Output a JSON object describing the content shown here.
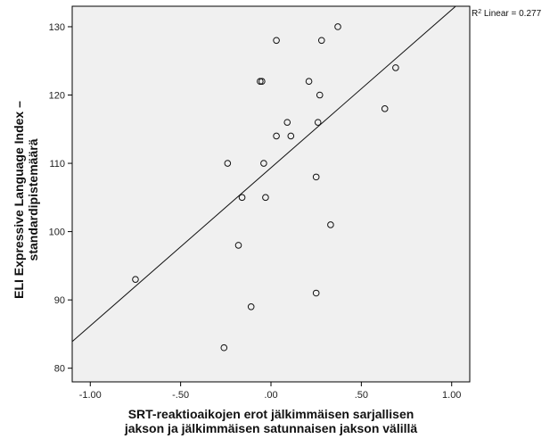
{
  "chart_data": {
    "type": "scatter",
    "xlabel_lines": [
      "SRT-reaktioaikojen erot jälkimmäisen sarjallisen",
      "jakson ja jälkimmäisen satunnaisen jakson välillä"
    ],
    "ylabel_lines": [
      "ELI Expressive Language Index –",
      "standardipistemäärä"
    ],
    "xlim": [
      -1.1,
      1.1
    ],
    "ylim": [
      78,
      133
    ],
    "x_ticks": [
      -1.0,
      -0.5,
      0.0,
      0.5,
      1.0
    ],
    "x_tick_labels": [
      "-1.00",
      "-.50",
      ".00",
      ".50",
      "1.00"
    ],
    "y_ticks": [
      80,
      90,
      100,
      110,
      120,
      130
    ],
    "y_tick_labels": [
      "80",
      "90",
      "100",
      "110",
      "120",
      "130"
    ],
    "grid": false,
    "points": [
      {
        "x": 0.37,
        "y": 130
      },
      {
        "x": 0.03,
        "y": 128
      },
      {
        "x": 0.28,
        "y": 128
      },
      {
        "x": 0.69,
        "y": 124
      },
      {
        "x": -0.06,
        "y": 122
      },
      {
        "x": -0.05,
        "y": 122
      },
      {
        "x": 0.21,
        "y": 122
      },
      {
        "x": 0.27,
        "y": 120
      },
      {
        "x": 0.63,
        "y": 118
      },
      {
        "x": 0.09,
        "y": 116
      },
      {
        "x": 0.26,
        "y": 116
      },
      {
        "x": 0.03,
        "y": 114
      },
      {
        "x": 0.11,
        "y": 114
      },
      {
        "x": -0.24,
        "y": 110
      },
      {
        "x": -0.04,
        "y": 110
      },
      {
        "x": 0.25,
        "y": 108
      },
      {
        "x": -0.16,
        "y": 105
      },
      {
        "x": -0.03,
        "y": 105
      },
      {
        "x": 0.33,
        "y": 101
      },
      {
        "x": -0.18,
        "y": 98
      },
      {
        "x": -0.75,
        "y": 93
      },
      {
        "x": 0.25,
        "y": 91
      },
      {
        "x": -0.11,
        "y": 89
      },
      {
        "x": -0.26,
        "y": 83
      }
    ],
    "fit_line": {
      "x": [
        -1.1,
        1.1
      ],
      "y": [
        83.9,
        134.8
      ]
    },
    "r2_label": {
      "prefix": "R",
      "sup": "2",
      "text": " Linear = 0.277"
    },
    "colors": {
      "plot_bg": "#f0f0f0",
      "marker": "#111111",
      "line": "#111111"
    }
  }
}
